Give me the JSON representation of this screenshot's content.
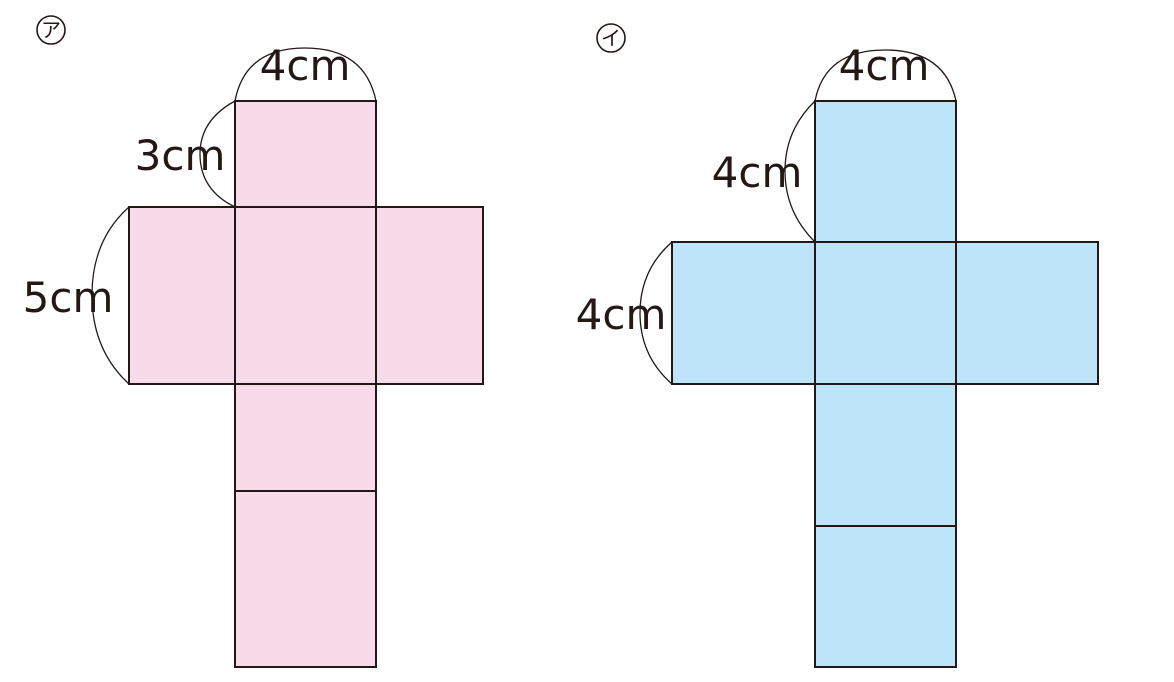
{
  "net_a": {
    "marker": "ア",
    "fill_color": "#f8dbe8",
    "labels": {
      "top_width": "4cm",
      "top_height": "3cm",
      "side_height": "5cm"
    }
  },
  "net_b": {
    "marker": "イ",
    "fill_color": "#bde4f8",
    "labels": {
      "top_width": "4cm",
      "top_height": "4cm",
      "side_height": "4cm"
    }
  },
  "line_color": "#231815"
}
